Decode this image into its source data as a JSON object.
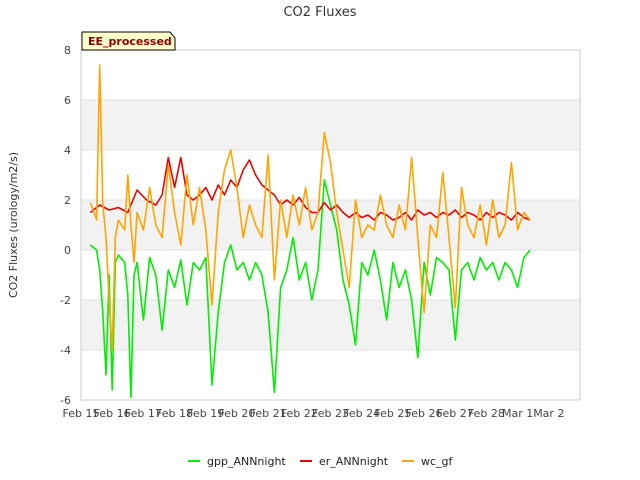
{
  "chart_data": {
    "type": "line",
    "title": "CO2 Fluxes",
    "xlabel": "",
    "ylabel": "CO2 Fluxes (urology/m2/s)",
    "ylim": [
      -6,
      8
    ],
    "yticks": [
      -6,
      -4,
      -2,
      0,
      2,
      4,
      6,
      8
    ],
    "xlim_days": [
      0,
      16
    ],
    "xtick_labels": [
      "Feb 15",
      "Feb 16",
      "Feb 17",
      "Feb 18",
      "Feb 19",
      "Feb 20",
      "Feb 21",
      "Feb 22",
      "Feb 23",
      "Feb 24",
      "Feb 25",
      "Feb 26",
      "Feb 27",
      "Feb 28",
      "Mar 1",
      "Mar 2"
    ],
    "tag": "EE_processed",
    "grid": "horizontal bands",
    "legend_position": "bottom-center",
    "series": [
      {
        "name": "gpp_ANNnight",
        "color": "#00ee00",
        "x": [
          0.3,
          0.5,
          0.6,
          0.7,
          0.8,
          0.9,
          1.0,
          1.1,
          1.2,
          1.4,
          1.5,
          1.6,
          1.7,
          1.8,
          2.0,
          2.2,
          2.4,
          2.6,
          2.8,
          3.0,
          3.2,
          3.4,
          3.6,
          3.8,
          4.0,
          4.2,
          4.4,
          4.6,
          4.8,
          5.0,
          5.2,
          5.4,
          5.6,
          5.8,
          6.0,
          6.2,
          6.4,
          6.6,
          6.8,
          7.0,
          7.2,
          7.4,
          7.6,
          7.8,
          8.0,
          8.2,
          8.4,
          8.6,
          8.8,
          9.0,
          9.2,
          9.4,
          9.6,
          9.8,
          10.0,
          10.2,
          10.4,
          10.6,
          10.8,
          11.0,
          11.2,
          11.4,
          11.6,
          11.8,
          12.0,
          12.2,
          12.4,
          12.6,
          12.8,
          13.0,
          13.2,
          13.4,
          13.6,
          13.8,
          14.0,
          14.2,
          14.4
        ],
        "y": [
          0.2,
          0.0,
          -0.8,
          -2.5,
          -5.0,
          -1.0,
          -5.6,
          -0.5,
          -0.2,
          -0.5,
          -1.8,
          -5.9,
          -1.0,
          -0.5,
          -2.8,
          -0.3,
          -1.0,
          -3.2,
          -0.8,
          -1.5,
          -0.4,
          -2.2,
          -0.5,
          -0.8,
          -0.3,
          -5.4,
          -2.5,
          -0.5,
          0.2,
          -0.8,
          -0.5,
          -1.2,
          -0.5,
          -1.0,
          -2.5,
          -5.7,
          -1.5,
          -0.8,
          0.5,
          -1.2,
          -0.5,
          -2.0,
          -0.8,
          2.8,
          1.8,
          0.8,
          -1.2,
          -2.2,
          -3.8,
          -0.5,
          -1.0,
          0.0,
          -1.2,
          -2.8,
          -0.5,
          -1.5,
          -0.8,
          -2.0,
          -4.3,
          -0.5,
          -1.8,
          -0.3,
          -0.5,
          -0.8,
          -3.6,
          -0.8,
          -0.5,
          -1.2,
          -0.3,
          -0.8,
          -0.5,
          -1.2,
          -0.5,
          -0.8,
          -1.5,
          -0.3,
          0.0
        ]
      },
      {
        "name": "er_ANNnight",
        "color": "#ee0000",
        "x": [
          0.3,
          0.6,
          0.9,
          1.2,
          1.5,
          1.8,
          2.1,
          2.4,
          2.6,
          2.8,
          3.0,
          3.2,
          3.4,
          3.6,
          3.8,
          4.0,
          4.2,
          4.4,
          4.6,
          4.8,
          5.0,
          5.2,
          5.4,
          5.6,
          5.8,
          6.0,
          6.2,
          6.4,
          6.6,
          6.8,
          7.0,
          7.2,
          7.4,
          7.6,
          7.8,
          8.0,
          8.2,
          8.4,
          8.6,
          8.8,
          9.0,
          9.2,
          9.4,
          9.6,
          9.8,
          10.0,
          10.2,
          10.4,
          10.6,
          10.8,
          11.0,
          11.2,
          11.4,
          11.6,
          11.8,
          12.0,
          12.2,
          12.4,
          12.6,
          12.8,
          13.0,
          13.2,
          13.4,
          13.6,
          13.8,
          14.0,
          14.2,
          14.4
        ],
        "y": [
          1.5,
          1.8,
          1.6,
          1.7,
          1.5,
          2.4,
          2.0,
          1.8,
          2.2,
          3.7,
          2.5,
          3.7,
          2.2,
          2.0,
          2.2,
          2.5,
          2.0,
          2.6,
          2.2,
          2.8,
          2.5,
          3.2,
          3.6,
          3.0,
          2.6,
          2.4,
          2.2,
          1.8,
          2.0,
          1.8,
          2.1,
          1.7,
          1.5,
          1.5,
          1.9,
          1.6,
          1.8,
          1.5,
          1.3,
          1.5,
          1.3,
          1.4,
          1.2,
          1.5,
          1.4,
          1.2,
          1.3,
          1.5,
          1.2,
          1.6,
          1.4,
          1.5,
          1.3,
          1.5,
          1.4,
          1.6,
          1.3,
          1.5,
          1.4,
          1.2,
          1.5,
          1.3,
          1.5,
          1.4,
          1.2,
          1.5,
          1.3,
          1.2
        ]
      },
      {
        "name": "wc_gf",
        "color": "#ffa500",
        "x": [
          0.3,
          0.5,
          0.6,
          0.7,
          0.8,
          0.9,
          1.0,
          1.1,
          1.2,
          1.4,
          1.5,
          1.6,
          1.7,
          1.8,
          2.0,
          2.2,
          2.4,
          2.6,
          2.8,
          3.0,
          3.2,
          3.4,
          3.6,
          3.8,
          4.0,
          4.2,
          4.4,
          4.6,
          4.8,
          5.0,
          5.2,
          5.4,
          5.6,
          5.8,
          6.0,
          6.2,
          6.4,
          6.6,
          6.8,
          7.0,
          7.2,
          7.4,
          7.6,
          7.8,
          8.0,
          8.2,
          8.4,
          8.6,
          8.8,
          9.0,
          9.2,
          9.4,
          9.6,
          9.8,
          10.0,
          10.2,
          10.4,
          10.6,
          10.8,
          11.0,
          11.2,
          11.4,
          11.6,
          11.8,
          12.0,
          12.2,
          12.4,
          12.6,
          12.8,
          13.0,
          13.2,
          13.4,
          13.6,
          13.8,
          14.0,
          14.2,
          14.4
        ],
        "y": [
          1.9,
          1.2,
          7.4,
          1.8,
          0.5,
          -2.0,
          -4.0,
          0.5,
          1.2,
          0.8,
          3.0,
          1.0,
          -0.5,
          1.5,
          0.8,
          2.5,
          1.0,
          0.5,
          3.4,
          1.5,
          0.2,
          3.0,
          1.0,
          2.5,
          0.8,
          -2.2,
          1.5,
          3.2,
          4.0,
          2.5,
          0.5,
          1.8,
          1.0,
          0.5,
          3.8,
          -1.2,
          2.0,
          0.5,
          2.2,
          1.0,
          2.5,
          0.8,
          1.5,
          4.7,
          3.5,
          1.5,
          0.0,
          -1.5,
          2.0,
          0.5,
          1.0,
          0.8,
          2.2,
          1.0,
          0.5,
          1.8,
          0.8,
          3.7,
          0.5,
          -2.5,
          1.0,
          0.5,
          3.1,
          0.5,
          -2.3,
          2.5,
          1.0,
          0.5,
          1.8,
          0.2,
          2.0,
          0.5,
          1.0,
          3.5,
          0.8,
          1.5,
          1.2
        ]
      }
    ]
  }
}
